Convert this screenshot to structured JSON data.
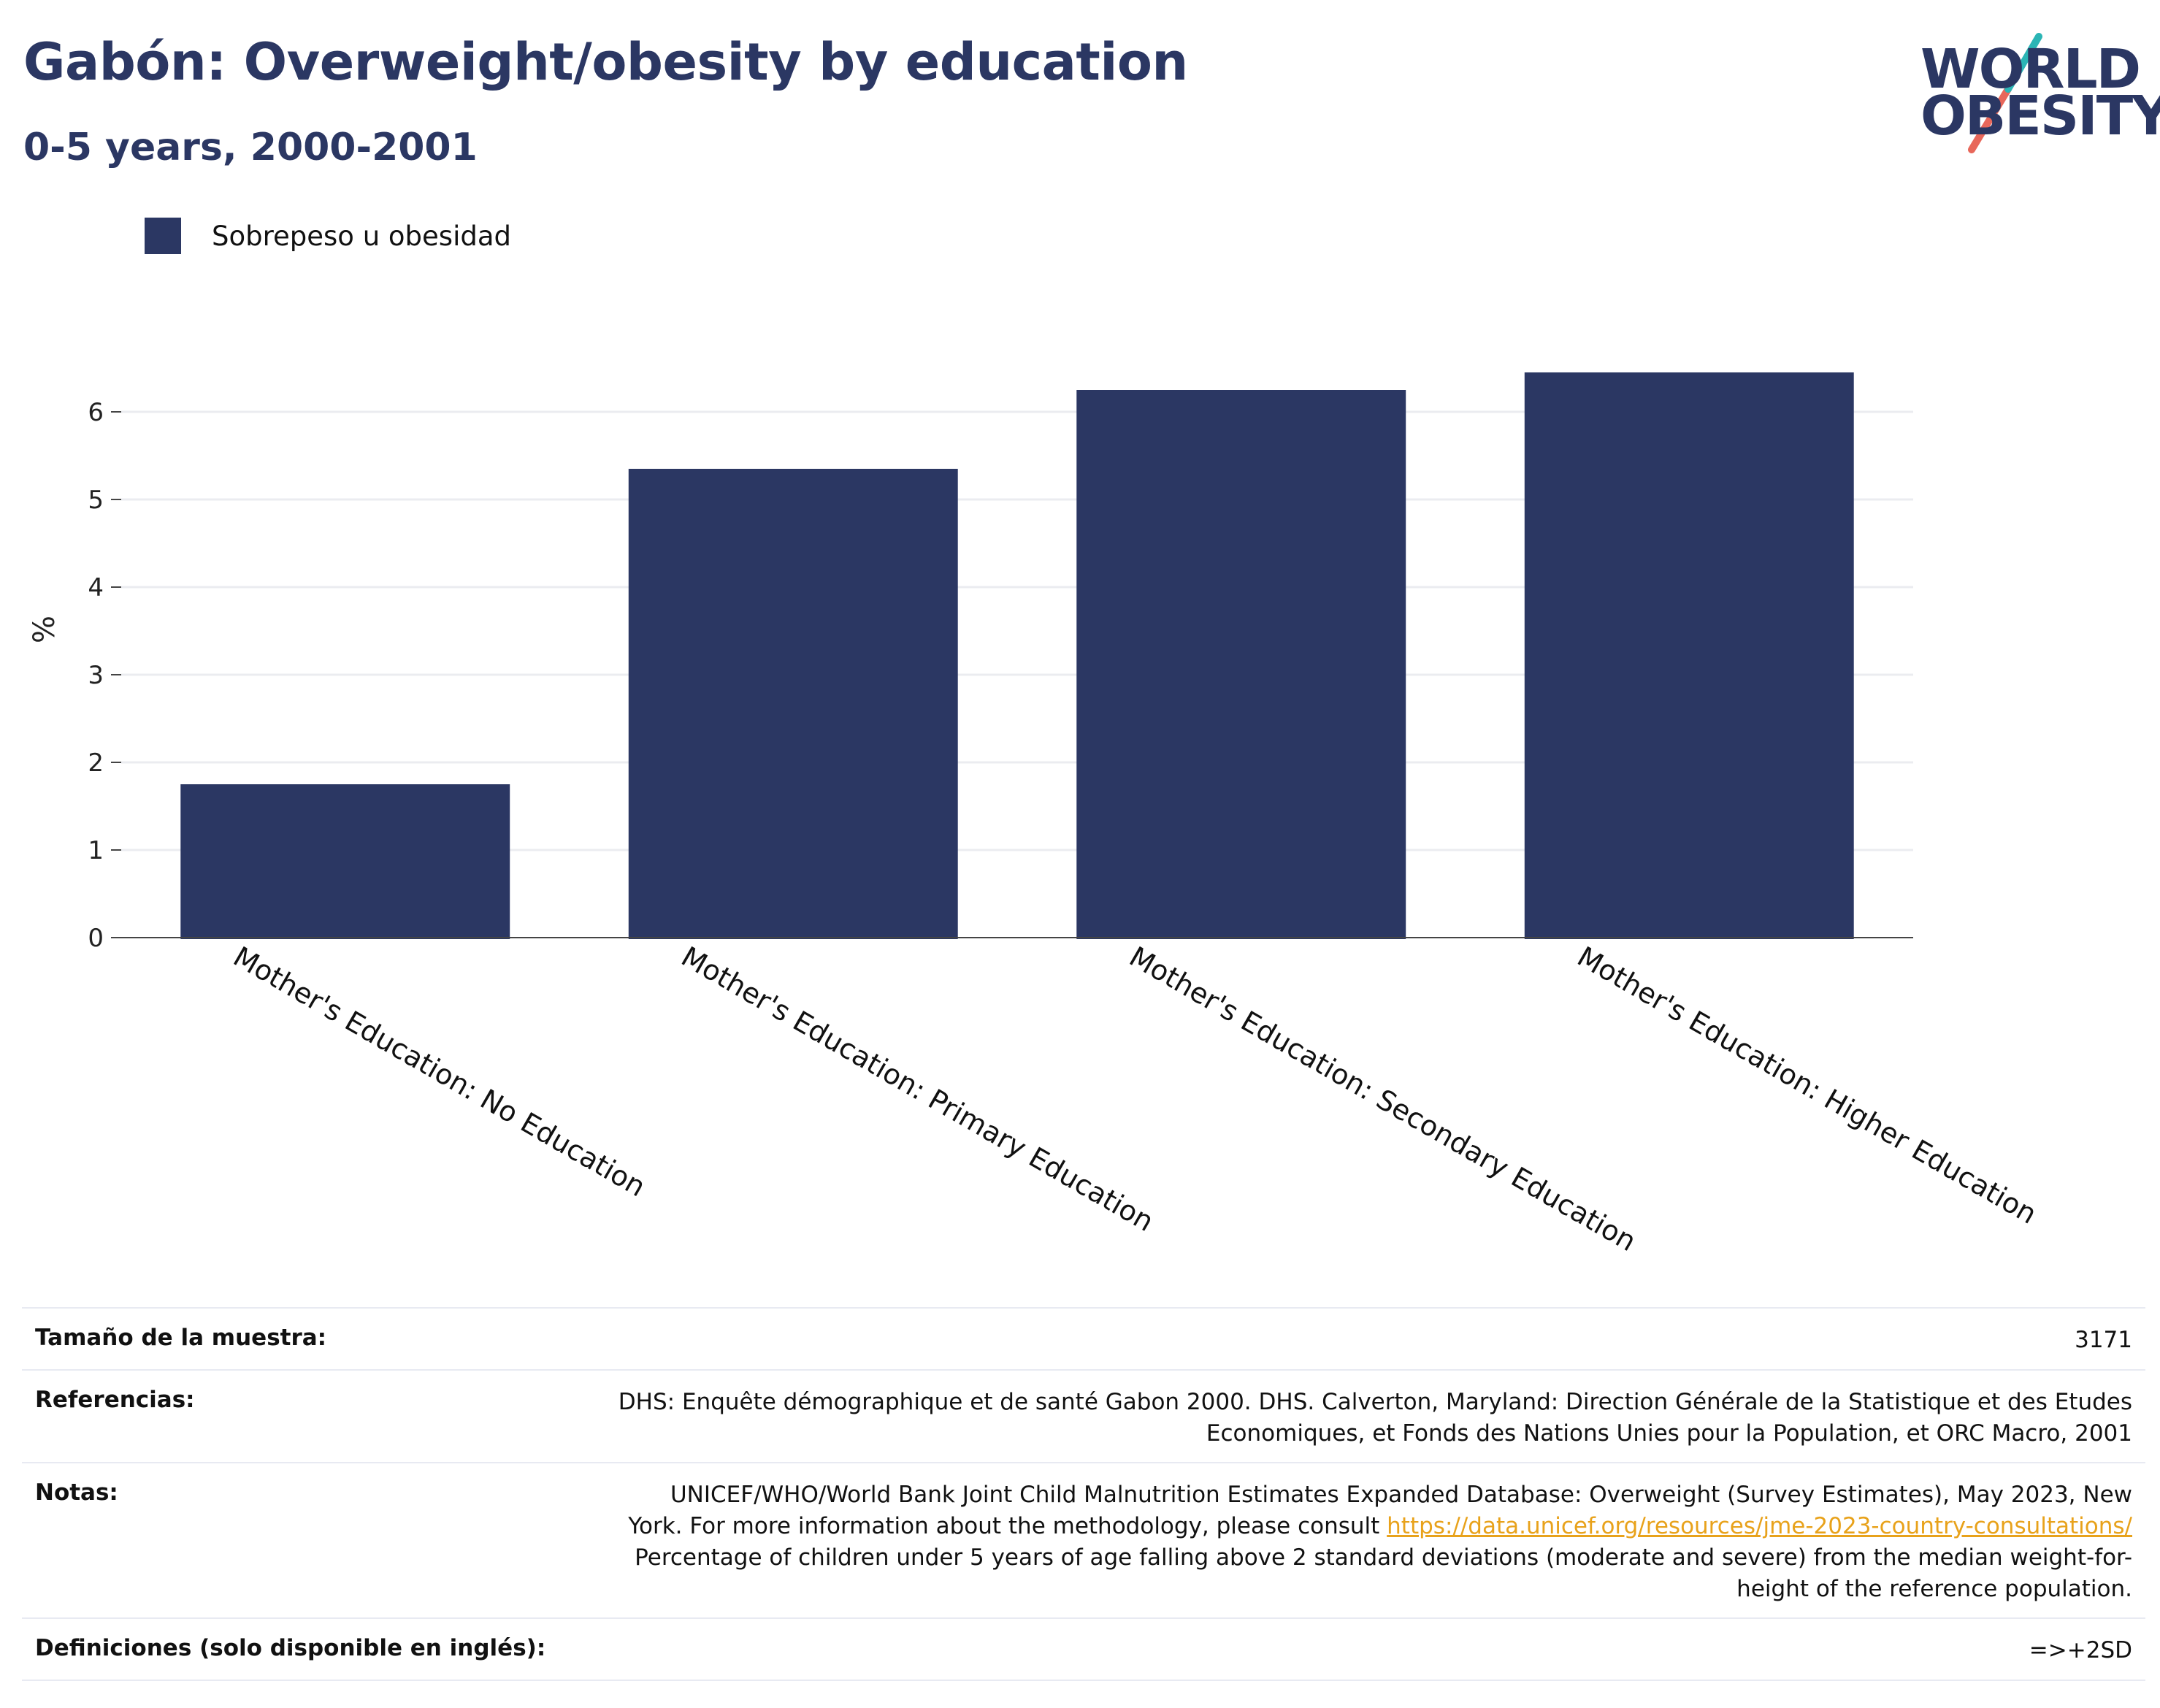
{
  "header": {
    "title": "Gabón: Overweight/obesity by education",
    "subtitle": "0-5 years, 2000-2001"
  },
  "logo": {
    "line1": "WORLD",
    "line2": "OBESITY",
    "accent_teal": "#2bb5b5",
    "accent_coral": "#e8675a"
  },
  "legend": {
    "label": "Sobrepeso u obesidad",
    "color": "#2b3763"
  },
  "chart_data": {
    "type": "bar",
    "categories": [
      "Mother's Education: No Education",
      "Mother's Education: Primary Education",
      "Mother's Education: Secondary Education",
      "Mother's Education: Higher Education"
    ],
    "series": [
      {
        "name": "Sobrepeso u obesidad",
        "values": [
          1.75,
          5.35,
          6.25,
          6.45
        ]
      }
    ],
    "ylabel": "%",
    "xlabel": "",
    "ylim": [
      0,
      6.8
    ],
    "yticks": [
      0,
      1,
      2,
      3,
      4,
      5,
      6
    ],
    "grid": true,
    "bar_color": "#2b3763"
  },
  "info": {
    "sample": {
      "label": "Tamaño de la muestra:",
      "value": "3171"
    },
    "references": {
      "label": "Referencias:",
      "line1": "DHS: Enquête démographique et de santé Gabon 2000. DHS. Calverton, Maryland: Direction Générale de la Statistique et des Etudes",
      "line2": "Economiques, et Fonds des Nations Unies pour la Population, et ORC Macro, 2001"
    },
    "notes": {
      "label": "Notas:",
      "line1": "UNICEF/WHO/World Bank Joint Child Malnutrition Estimates Expanded Database: Overweight (Survey Estimates), May 2023, New",
      "line2_text": "York. For more information about the methodology, please consult ",
      "link": "https://data.unicef.org/resources/jme-2023-country-consultations/",
      "line3": "Percentage of children under 5 years of age falling above 2 standard deviations (moderate and severe) from the median weight-for-",
      "line4": "height of the reference population."
    },
    "definitions": {
      "label": "Definiciones (solo disponible en inglés):",
      "value": "=>+2SD"
    }
  }
}
